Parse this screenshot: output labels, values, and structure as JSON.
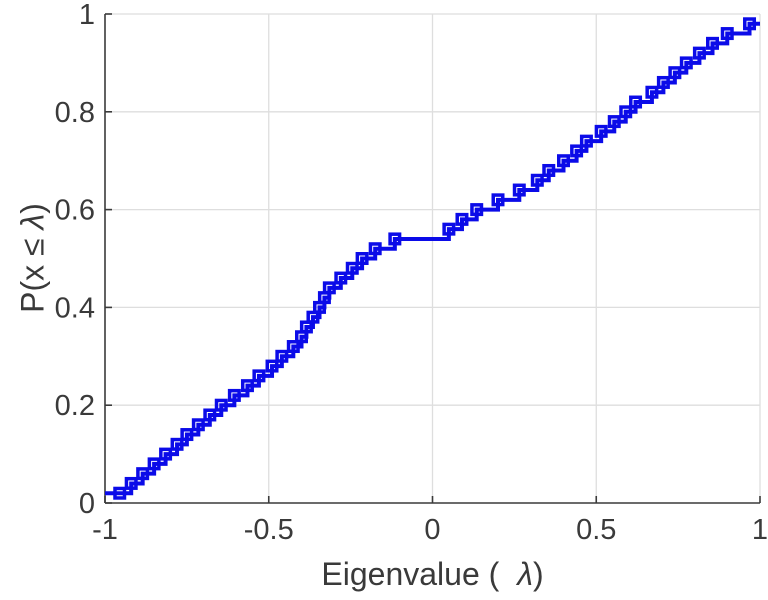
{
  "figure": {
    "xlabel": {
      "prefix": "Eigenvalue ( ",
      "symbol": "λ",
      "suffix": ")"
    },
    "ylabel": {
      "prefix": "P(x ≤ ",
      "symbol": "λ",
      "suffix": ")"
    }
  },
  "colors": {
    "line": "#0b0be8",
    "axis": "#3a3a3a",
    "grid": "#dedede",
    "tick_label": "#3a3a3a",
    "background": "#ffffff"
  },
  "chart_data": {
    "type": "line",
    "subtype": "stairs-ecdf",
    "title": "",
    "xlabel": "Eigenvalue ( λ)",
    "ylabel": "P(x ≤ λ)",
    "xlim": [
      -1,
      1
    ],
    "ylim": [
      0,
      1
    ],
    "grid": true,
    "legend": false,
    "x_ticks": {
      "values": [
        -1,
        -0.5,
        0,
        0.5,
        1
      ],
      "labels": [
        "-1",
        "-0.5",
        "0",
        "0.5",
        "1"
      ]
    },
    "y_ticks": {
      "values": [
        0,
        0.2,
        0.4,
        0.6,
        0.8,
        1
      ],
      "labels": [
        "0",
        "0.2",
        "0.4",
        "0.6",
        "0.8",
        "1"
      ]
    },
    "series": [
      {
        "name": "empirical-cdf",
        "style": "stairs",
        "marker": "square",
        "color": "#0b0be8",
        "line_extends": {
          "left_x": -1,
          "right_x": 1
        },
        "x": [
          -0.955,
          -0.92,
          -0.885,
          -0.85,
          -0.815,
          -0.78,
          -0.75,
          -0.715,
          -0.68,
          -0.645,
          -0.605,
          -0.565,
          -0.53,
          -0.49,
          -0.46,
          -0.425,
          -0.4,
          -0.385,
          -0.365,
          -0.345,
          -0.33,
          -0.315,
          -0.28,
          -0.245,
          -0.215,
          -0.175,
          -0.115,
          0.05,
          0.09,
          0.135,
          0.2,
          0.265,
          0.32,
          0.355,
          0.4,
          0.44,
          0.47,
          0.515,
          0.555,
          0.59,
          0.62,
          0.67,
          0.705,
          0.74,
          0.775,
          0.815,
          0.855,
          0.9,
          0.968
        ],
        "y": [
          0.02,
          0.04,
          0.06,
          0.08,
          0.1,
          0.12,
          0.14,
          0.16,
          0.18,
          0.2,
          0.22,
          0.24,
          0.26,
          0.28,
          0.3,
          0.32,
          0.34,
          0.36,
          0.38,
          0.4,
          0.42,
          0.44,
          0.46,
          0.48,
          0.5,
          0.52,
          0.54,
          0.56,
          0.58,
          0.6,
          0.62,
          0.64,
          0.66,
          0.68,
          0.7,
          0.72,
          0.74,
          0.76,
          0.78,
          0.8,
          0.82,
          0.84,
          0.86,
          0.88,
          0.9,
          0.92,
          0.94,
          0.96,
          0.98
        ]
      }
    ]
  }
}
